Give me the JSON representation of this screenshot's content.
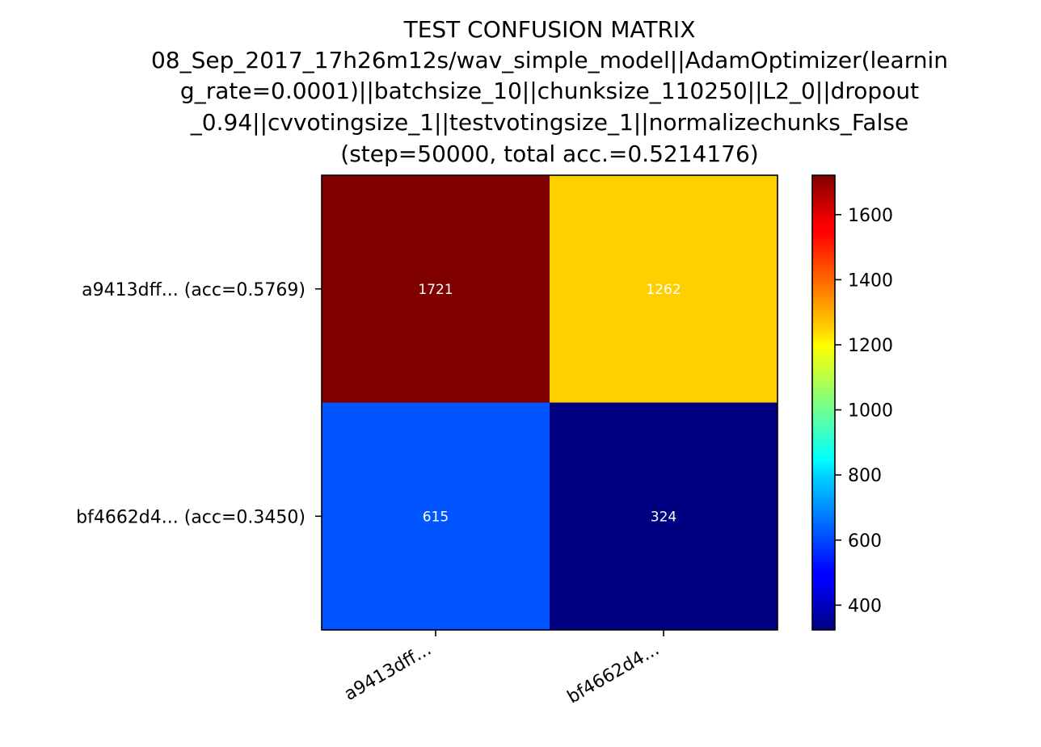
{
  "chart_data": {
    "type": "heatmap",
    "title_lines": [
      "TEST CONFUSION MATRIX",
      "08_Sep_2017_17h26m12s/wav_simple_model||AdamOptimizer(learnin",
      "g_rate=0.0001)||batchsize_10||chunksize_110250||L2_0||dropout",
      "_0.94||cvvotingsize_1||testvotingsize_1||normalizechunks_False",
      "(step=50000, total acc.=0.5214176)"
    ],
    "row_labels": [
      "a9413dff... (acc=0.5769)",
      "bf4662d4... (acc=0.3450)"
    ],
    "col_labels": [
      "a9413dff...",
      "bf4662d4..."
    ],
    "values": [
      [
        1721,
        1262
      ],
      [
        615,
        324
      ]
    ],
    "colormap": "jet",
    "cell_text_color": "#ffffff",
    "colorbar": {
      "range": [
        324,
        1721
      ],
      "ticks": [
        400,
        600,
        800,
        1000,
        1200,
        1400,
        1600
      ]
    }
  }
}
